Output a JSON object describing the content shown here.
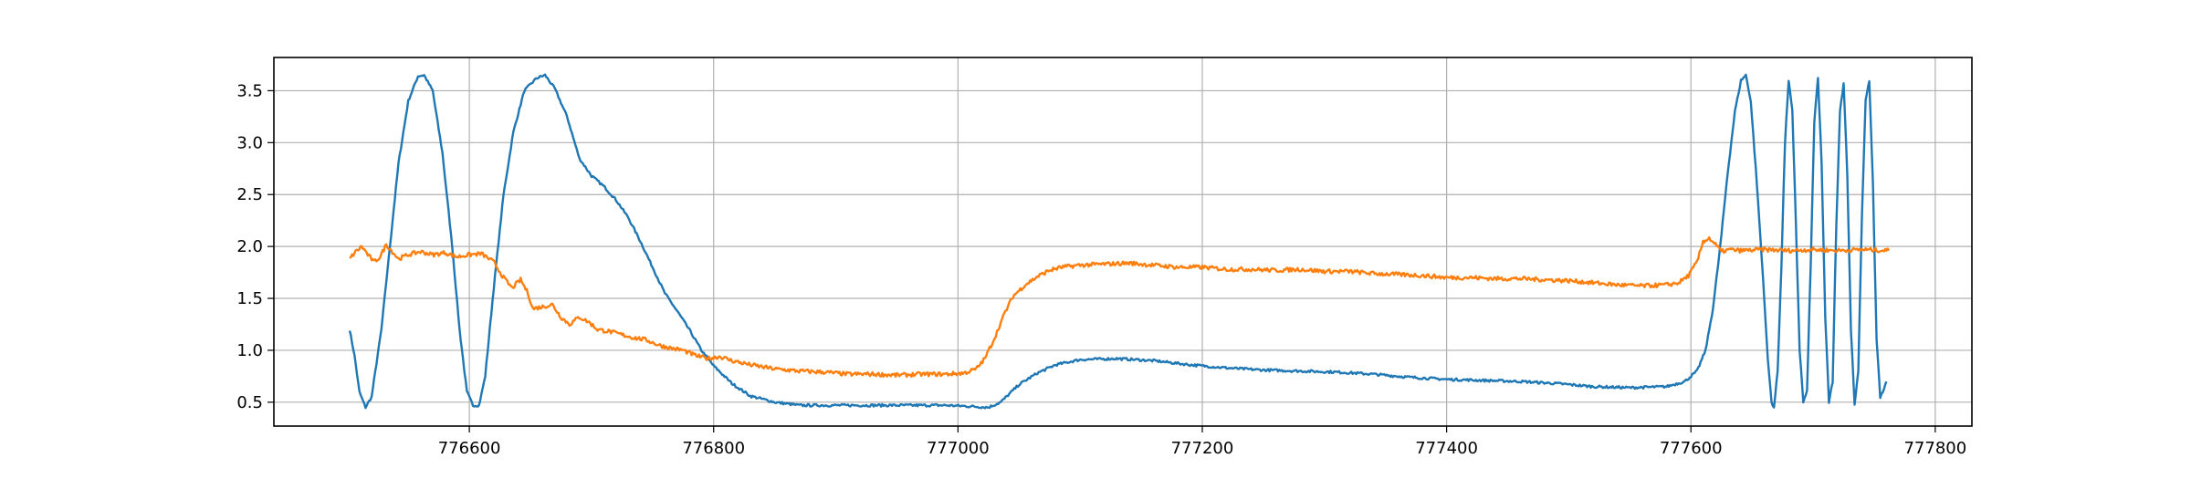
{
  "chart_data": {
    "type": "line",
    "title": "",
    "xlabel": "",
    "ylabel": "",
    "xlim": [
      776440,
      777830
    ],
    "ylim": [
      0.27,
      3.82
    ],
    "grid": true,
    "legend": "none",
    "xticks": [
      {
        "value": 776600,
        "label": "776600"
      },
      {
        "value": 776800,
        "label": "776800"
      },
      {
        "value": 777000,
        "label": "777000"
      },
      {
        "value": 777200,
        "label": "777200"
      },
      {
        "value": 777400,
        "label": "777400"
      },
      {
        "value": 777600,
        "label": "777600"
      },
      {
        "value": 777800,
        "label": "777800"
      }
    ],
    "yticks": [
      {
        "value": 0.5,
        "label": "0.5"
      },
      {
        "value": 1.0,
        "label": "1.0"
      },
      {
        "value": 1.5,
        "label": "1.5"
      },
      {
        "value": 2.0,
        "label": "2.0"
      },
      {
        "value": 2.5,
        "label": "2.5"
      },
      {
        "value": 3.0,
        "label": "3.0"
      },
      {
        "value": 3.5,
        "label": "3.5"
      }
    ],
    "series": [
      {
        "color": "#1f77b4",
        "noise": 0.012,
        "points": [
          [
            776502,
            1.2
          ],
          [
            776506,
            0.95
          ],
          [
            776510,
            0.6
          ],
          [
            776515,
            0.45
          ],
          [
            776520,
            0.55
          ],
          [
            776528,
            1.2
          ],
          [
            776535,
            2.0
          ],
          [
            776542,
            2.8
          ],
          [
            776550,
            3.4
          ],
          [
            776558,
            3.64
          ],
          [
            776563,
            3.65
          ],
          [
            776570,
            3.5
          ],
          [
            776578,
            2.9
          ],
          [
            776586,
            2.0
          ],
          [
            776592,
            1.2
          ],
          [
            776598,
            0.6
          ],
          [
            776603,
            0.47
          ],
          [
            776608,
            0.47
          ],
          [
            776613,
            0.75
          ],
          [
            776620,
            1.6
          ],
          [
            776628,
            2.5
          ],
          [
            776636,
            3.1
          ],
          [
            776645,
            3.5
          ],
          [
            776655,
            3.62
          ],
          [
            776662,
            3.65
          ],
          [
            776670,
            3.52
          ],
          [
            776680,
            3.25
          ],
          [
            776690,
            2.85
          ],
          [
            776700,
            2.68
          ],
          [
            776710,
            2.58
          ],
          [
            776720,
            2.45
          ],
          [
            776730,
            2.28
          ],
          [
            776740,
            2.05
          ],
          [
            776750,
            1.8
          ],
          [
            776760,
            1.55
          ],
          [
            776770,
            1.38
          ],
          [
            776780,
            1.2
          ],
          [
            776790,
            1.0
          ],
          [
            776800,
            0.85
          ],
          [
            776815,
            0.68
          ],
          [
            776830,
            0.56
          ],
          [
            776850,
            0.5
          ],
          [
            776870,
            0.47
          ],
          [
            776900,
            0.47
          ],
          [
            776930,
            0.47
          ],
          [
            776960,
            0.47
          ],
          [
            776990,
            0.47
          ],
          [
            777010,
            0.46
          ],
          [
            777025,
            0.45
          ],
          [
            777035,
            0.5
          ],
          [
            777050,
            0.67
          ],
          [
            777065,
            0.78
          ],
          [
            777080,
            0.86
          ],
          [
            777100,
            0.91
          ],
          [
            777130,
            0.92
          ],
          [
            777160,
            0.9
          ],
          [
            777190,
            0.86
          ],
          [
            777220,
            0.83
          ],
          [
            777250,
            0.81
          ],
          [
            777280,
            0.8
          ],
          [
            777310,
            0.79
          ],
          [
            777340,
            0.77
          ],
          [
            777370,
            0.74
          ],
          [
            777400,
            0.72
          ],
          [
            777430,
            0.71
          ],
          [
            777460,
            0.7
          ],
          [
            777490,
            0.68
          ],
          [
            777520,
            0.65
          ],
          [
            777550,
            0.64
          ],
          [
            777580,
            0.65
          ],
          [
            777595,
            0.7
          ],
          [
            777605,
            0.8
          ],
          [
            777612,
            1.0
          ],
          [
            777618,
            1.4
          ],
          [
            777624,
            2.0
          ],
          [
            777630,
            2.7
          ],
          [
            777636,
            3.3
          ],
          [
            777641,
            3.6
          ],
          [
            777645,
            3.65
          ],
          [
            777649,
            3.4
          ],
          [
            777654,
            2.6
          ],
          [
            777659,
            1.7
          ],
          [
            777663,
            0.9
          ],
          [
            777666,
            0.5
          ],
          [
            777668,
            0.45
          ],
          [
            777671,
            0.8
          ],
          [
            777674,
            1.8
          ],
          [
            777677,
            3.0
          ],
          [
            777680,
            3.6
          ],
          [
            777683,
            3.3
          ],
          [
            777686,
            2.2
          ],
          [
            777689,
            1.0
          ],
          [
            777692,
            0.5
          ],
          [
            777695,
            0.6
          ],
          [
            777698,
            1.8
          ],
          [
            777701,
            3.2
          ],
          [
            777704,
            3.62
          ],
          [
            777707,
            2.8
          ],
          [
            777710,
            1.3
          ],
          [
            777713,
            0.5
          ],
          [
            777716,
            0.7
          ],
          [
            777719,
            2.2
          ],
          [
            777722,
            3.3
          ],
          [
            777725,
            3.58
          ],
          [
            777728,
            2.7
          ],
          [
            777731,
            1.2
          ],
          [
            777734,
            0.48
          ],
          [
            777737,
            0.8
          ],
          [
            777740,
            2.3
          ],
          [
            777743,
            3.4
          ],
          [
            777746,
            3.6
          ],
          [
            777749,
            2.6
          ],
          [
            777752,
            1.1
          ],
          [
            777755,
            0.55
          ],
          [
            777758,
            0.62
          ],
          [
            777760,
            0.7
          ]
        ]
      },
      {
        "color": "#ff7f0e",
        "noise": 0.02,
        "points": [
          [
            776502,
            1.88
          ],
          [
            776507,
            1.95
          ],
          [
            776512,
            2.0
          ],
          [
            776517,
            1.92
          ],
          [
            776522,
            1.85
          ],
          [
            776527,
            1.9
          ],
          [
            776532,
            2.02
          ],
          [
            776537,
            1.95
          ],
          [
            776542,
            1.88
          ],
          [
            776550,
            1.92
          ],
          [
            776560,
            1.95
          ],
          [
            776570,
            1.92
          ],
          [
            776580,
            1.94
          ],
          [
            776590,
            1.9
          ],
          [
            776600,
            1.92
          ],
          [
            776610,
            1.93
          ],
          [
            776620,
            1.85
          ],
          [
            776628,
            1.7
          ],
          [
            776635,
            1.6
          ],
          [
            776642,
            1.68
          ],
          [
            776648,
            1.55
          ],
          [
            776652,
            1.4
          ],
          [
            776660,
            1.42
          ],
          [
            776668,
            1.44
          ],
          [
            776675,
            1.32
          ],
          [
            776682,
            1.25
          ],
          [
            776690,
            1.32
          ],
          [
            776698,
            1.27
          ],
          [
            776705,
            1.2
          ],
          [
            776715,
            1.18
          ],
          [
            776725,
            1.15
          ],
          [
            776735,
            1.12
          ],
          [
            776745,
            1.1
          ],
          [
            776755,
            1.05
          ],
          [
            776765,
            1.02
          ],
          [
            776775,
            1.0
          ],
          [
            776785,
            0.95
          ],
          [
            776795,
            0.92
          ],
          [
            776805,
            0.94
          ],
          [
            776815,
            0.9
          ],
          [
            776830,
            0.86
          ],
          [
            776850,
            0.82
          ],
          [
            776870,
            0.8
          ],
          [
            776890,
            0.79
          ],
          [
            776910,
            0.77
          ],
          [
            776930,
            0.77
          ],
          [
            776950,
            0.76
          ],
          [
            776970,
            0.77
          ],
          [
            776990,
            0.77
          ],
          [
            777005,
            0.78
          ],
          [
            777015,
            0.82
          ],
          [
            777022,
            0.92
          ],
          [
            777030,
            1.12
          ],
          [
            777038,
            1.35
          ],
          [
            777045,
            1.52
          ],
          [
            777055,
            1.63
          ],
          [
            777065,
            1.71
          ],
          [
            777075,
            1.77
          ],
          [
            777085,
            1.8
          ],
          [
            777100,
            1.82
          ],
          [
            777120,
            1.83
          ],
          [
            777140,
            1.84
          ],
          [
            777160,
            1.82
          ],
          [
            777180,
            1.8
          ],
          [
            777200,
            1.8
          ],
          [
            777220,
            1.78
          ],
          [
            777240,
            1.78
          ],
          [
            777260,
            1.77
          ],
          [
            777280,
            1.78
          ],
          [
            777300,
            1.76
          ],
          [
            777320,
            1.76
          ],
          [
            777340,
            1.74
          ],
          [
            777360,
            1.73
          ],
          [
            777380,
            1.72
          ],
          [
            777400,
            1.7
          ],
          [
            777420,
            1.7
          ],
          [
            777440,
            1.69
          ],
          [
            777460,
            1.69
          ],
          [
            777480,
            1.68
          ],
          [
            777500,
            1.67
          ],
          [
            777520,
            1.65
          ],
          [
            777540,
            1.63
          ],
          [
            777560,
            1.62
          ],
          [
            777580,
            1.63
          ],
          [
            777590,
            1.65
          ],
          [
            777598,
            1.72
          ],
          [
            777605,
            1.85
          ],
          [
            777610,
            2.05
          ],
          [
            777615,
            2.08
          ],
          [
            777620,
            2.02
          ],
          [
            777625,
            1.95
          ],
          [
            777632,
            1.97
          ],
          [
            777640,
            1.96
          ],
          [
            777660,
            1.97
          ],
          [
            777680,
            1.96
          ],
          [
            777700,
            1.97
          ],
          [
            777720,
            1.96
          ],
          [
            777740,
            1.97
          ],
          [
            777762,
            1.96
          ]
        ]
      }
    ]
  }
}
